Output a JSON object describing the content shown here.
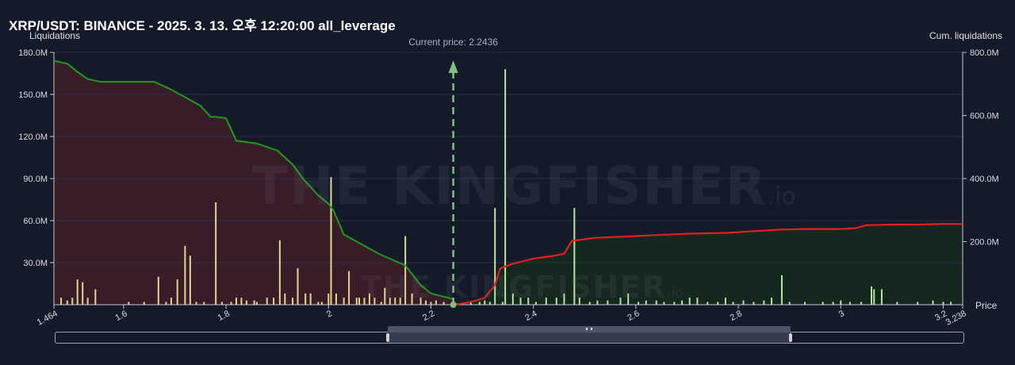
{
  "title": "XRP/USDT: BINANCE - 2025. 3. 13. 오후 12:20:00 all_leverage",
  "watermark": {
    "text": "THE KINGFISHER",
    "suffix": ".io"
  },
  "chart_data": {
    "type": "bar",
    "left_axis": {
      "title": "Liquidations",
      "ylim": [
        0,
        180000000
      ],
      "ticks": [
        "180.0M",
        "150.0M",
        "120.0M",
        "90.0M",
        "60.0M",
        "30.0M"
      ],
      "tick_values": [
        180000000,
        150000000,
        120000000,
        90000000,
        60000000,
        30000000
      ]
    },
    "right_axis": {
      "title": "Cum. liquidations",
      "ylim": [
        0,
        800000000
      ],
      "ticks": [
        "800.0M",
        "600.0M",
        "400.0M",
        "200.0M"
      ],
      "tick_values": [
        800000000,
        600000000,
        400000000,
        200000000
      ]
    },
    "x_axis": {
      "title": "Price",
      "xlim": [
        1.464,
        3.238
      ],
      "ticks": [
        "1.464",
        "1.6",
        "1.8",
        "2",
        "2.2",
        "2.4",
        "2.6",
        "2.8",
        "3",
        "3.2",
        "3.238"
      ],
      "tick_values": [
        1.464,
        1.6,
        1.8,
        2,
        2.2,
        2.4,
        2.6,
        2.8,
        3,
        3.2,
        3.238
      ]
    },
    "current_price": {
      "label": "Current price: 2.2436",
      "value": 2.2436
    },
    "grid": true,
    "colors": {
      "short_side_line": "#1f9a1f",
      "long_side_line": "#e02020",
      "bars": "#e0d890",
      "bars_right": "#b8e6a0",
      "marker": "#7fbf7f",
      "fill_left": "#3a1c28",
      "fill_right": "#15291f"
    },
    "liquidation_bars": [
      [
        1.478,
        5000000
      ],
      [
        1.49,
        3000000
      ],
      [
        1.5,
        5000000
      ],
      [
        1.51,
        18000000
      ],
      [
        1.52,
        16000000
      ],
      [
        1.53,
        5000000
      ],
      [
        1.545,
        11000000
      ],
      [
        1.61,
        2000000
      ],
      [
        1.64,
        2000000
      ],
      [
        1.668,
        20000000
      ],
      [
        1.683,
        2000000
      ],
      [
        1.693,
        5000000
      ],
      [
        1.705,
        18000000
      ],
      [
        1.72,
        42000000
      ],
      [
        1.73,
        35000000
      ],
      [
        1.742,
        2000000
      ],
      [
        1.757,
        2000000
      ],
      [
        1.78,
        73000000
      ],
      [
        1.792,
        2000000
      ],
      [
        1.81,
        2000000
      ],
      [
        1.82,
        5000000
      ],
      [
        1.83,
        5000000
      ],
      [
        1.84,
        3000000
      ],
      [
        1.855,
        3000000
      ],
      [
        1.86,
        2000000
      ],
      [
        1.88,
        5000000
      ],
      [
        1.893,
        5000000
      ],
      [
        1.905,
        46000000
      ],
      [
        1.915,
        8000000
      ],
      [
        1.93,
        5000000
      ],
      [
        1.94,
        26000000
      ],
      [
        1.955,
        8000000
      ],
      [
        1.965,
        8000000
      ],
      [
        1.98,
        2000000
      ],
      [
        1.987,
        2000000
      ],
      [
        2.0,
        8000000
      ],
      [
        2.005,
        91000000
      ],
      [
        2.015,
        8000000
      ],
      [
        2.03,
        5000000
      ],
      [
        2.04,
        24000000
      ],
      [
        2.055,
        5000000
      ],
      [
        2.06,
        5000000
      ],
      [
        2.07,
        5000000
      ],
      [
        2.08,
        8000000
      ],
      [
        2.09,
        5000000
      ],
      [
        2.103,
        2000000
      ],
      [
        2.11,
        12000000
      ],
      [
        2.12,
        5000000
      ],
      [
        2.13,
        5000000
      ],
      [
        2.14,
        5000000
      ],
      [
        2.15,
        49000000
      ],
      [
        2.163,
        8000000
      ],
      [
        2.18,
        5000000
      ],
      [
        2.19,
        3000000
      ],
      [
        2.2,
        2000000
      ],
      [
        2.21,
        3000000
      ],
      [
        2.225,
        2000000
      ],
      [
        2.278,
        2000000
      ],
      [
        2.295,
        2000000
      ],
      [
        2.305,
        3000000
      ],
      [
        2.315,
        2000000
      ],
      [
        2.325,
        69000000
      ],
      [
        2.34,
        2000000
      ],
      [
        2.345,
        168000000
      ],
      [
        2.36,
        8000000
      ],
      [
        2.375,
        5000000
      ],
      [
        2.39,
        5000000
      ],
      [
        2.405,
        2000000
      ],
      [
        2.425,
        5000000
      ],
      [
        2.445,
        5000000
      ],
      [
        2.46,
        8000000
      ],
      [
        2.48,
        69000000
      ],
      [
        2.49,
        5000000
      ],
      [
        2.51,
        2000000
      ],
      [
        2.525,
        3000000
      ],
      [
        2.545,
        3000000
      ],
      [
        2.57,
        5000000
      ],
      [
        2.585,
        8000000
      ],
      [
        2.605,
        2000000
      ],
      [
        2.62,
        3000000
      ],
      [
        2.64,
        3000000
      ],
      [
        2.655,
        2000000
      ],
      [
        2.675,
        2000000
      ],
      [
        2.69,
        3000000
      ],
      [
        2.705,
        5000000
      ],
      [
        2.72,
        5000000
      ],
      [
        2.74,
        2000000
      ],
      [
        2.76,
        2000000
      ],
      [
        2.775,
        5000000
      ],
      [
        2.79,
        2000000
      ],
      [
        2.81,
        3000000
      ],
      [
        2.83,
        2000000
      ],
      [
        2.85,
        3000000
      ],
      [
        2.865,
        5000000
      ],
      [
        2.885,
        21000000
      ],
      [
        2.9,
        2000000
      ],
      [
        2.93,
        2000000
      ],
      [
        2.965,
        2000000
      ],
      [
        2.985,
        2000000
      ],
      [
        3.0,
        3000000
      ],
      [
        3.018,
        2000000
      ],
      [
        3.04,
        2000000
      ],
      [
        3.06,
        13000000
      ],
      [
        3.065,
        11000000
      ],
      [
        3.08,
        11000000
      ],
      [
        3.11,
        2000000
      ],
      [
        3.15,
        2000000
      ],
      [
        3.18,
        3000000
      ],
      [
        3.2,
        2000000
      ],
      [
        3.215,
        2000000
      ]
    ],
    "cumulative_left": [
      [
        1.464,
        174000000
      ],
      [
        1.49,
        172000000
      ],
      [
        1.51,
        166000000
      ],
      [
        1.53,
        161000000
      ],
      [
        1.555,
        159000000
      ],
      [
        1.6,
        159000000
      ],
      [
        1.66,
        159000000
      ],
      [
        1.69,
        154000000
      ],
      [
        1.72,
        148000000
      ],
      [
        1.75,
        142000000
      ],
      [
        1.77,
        134000000
      ],
      [
        1.78,
        134000000
      ],
      [
        1.8,
        133000000
      ],
      [
        1.82,
        117000000
      ],
      [
        1.86,
        115000000
      ],
      [
        1.9,
        110000000
      ],
      [
        1.93,
        100000000
      ],
      [
        1.95,
        90000000
      ],
      [
        1.98,
        78000000
      ],
      [
        2.0,
        72000000
      ],
      [
        2.01,
        67000000
      ],
      [
        2.03,
        50000000
      ],
      [
        2.06,
        44000000
      ],
      [
        2.1,
        36000000
      ],
      [
        2.15,
        28000000
      ],
      [
        2.18,
        14000000
      ],
      [
        2.2,
        8000000
      ],
      [
        2.2436,
        4000000
      ]
    ],
    "cumulative_right": [
      [
        2.2436,
        0
      ],
      [
        2.27,
        6000000
      ],
      [
        2.29,
        14000000
      ],
      [
        2.305,
        22000000
      ],
      [
        2.325,
        62000000
      ],
      [
        2.335,
        115000000
      ],
      [
        2.36,
        130000000
      ],
      [
        2.4,
        146000000
      ],
      [
        2.44,
        155000000
      ],
      [
        2.46,
        162000000
      ],
      [
        2.475,
        202000000
      ],
      [
        2.52,
        212000000
      ],
      [
        2.58,
        216000000
      ],
      [
        2.63,
        220000000
      ],
      [
        2.7,
        225000000
      ],
      [
        2.78,
        228000000
      ],
      [
        2.85,
        235000000
      ],
      [
        2.88,
        238000000
      ],
      [
        2.93,
        240000000
      ],
      [
        3.0,
        240000000
      ],
      [
        3.03,
        243000000
      ],
      [
        3.05,
        252000000
      ],
      [
        3.1,
        254000000
      ],
      [
        3.15,
        254000000
      ],
      [
        3.2,
        256000000
      ],
      [
        3.238,
        256000000
      ]
    ]
  }
}
